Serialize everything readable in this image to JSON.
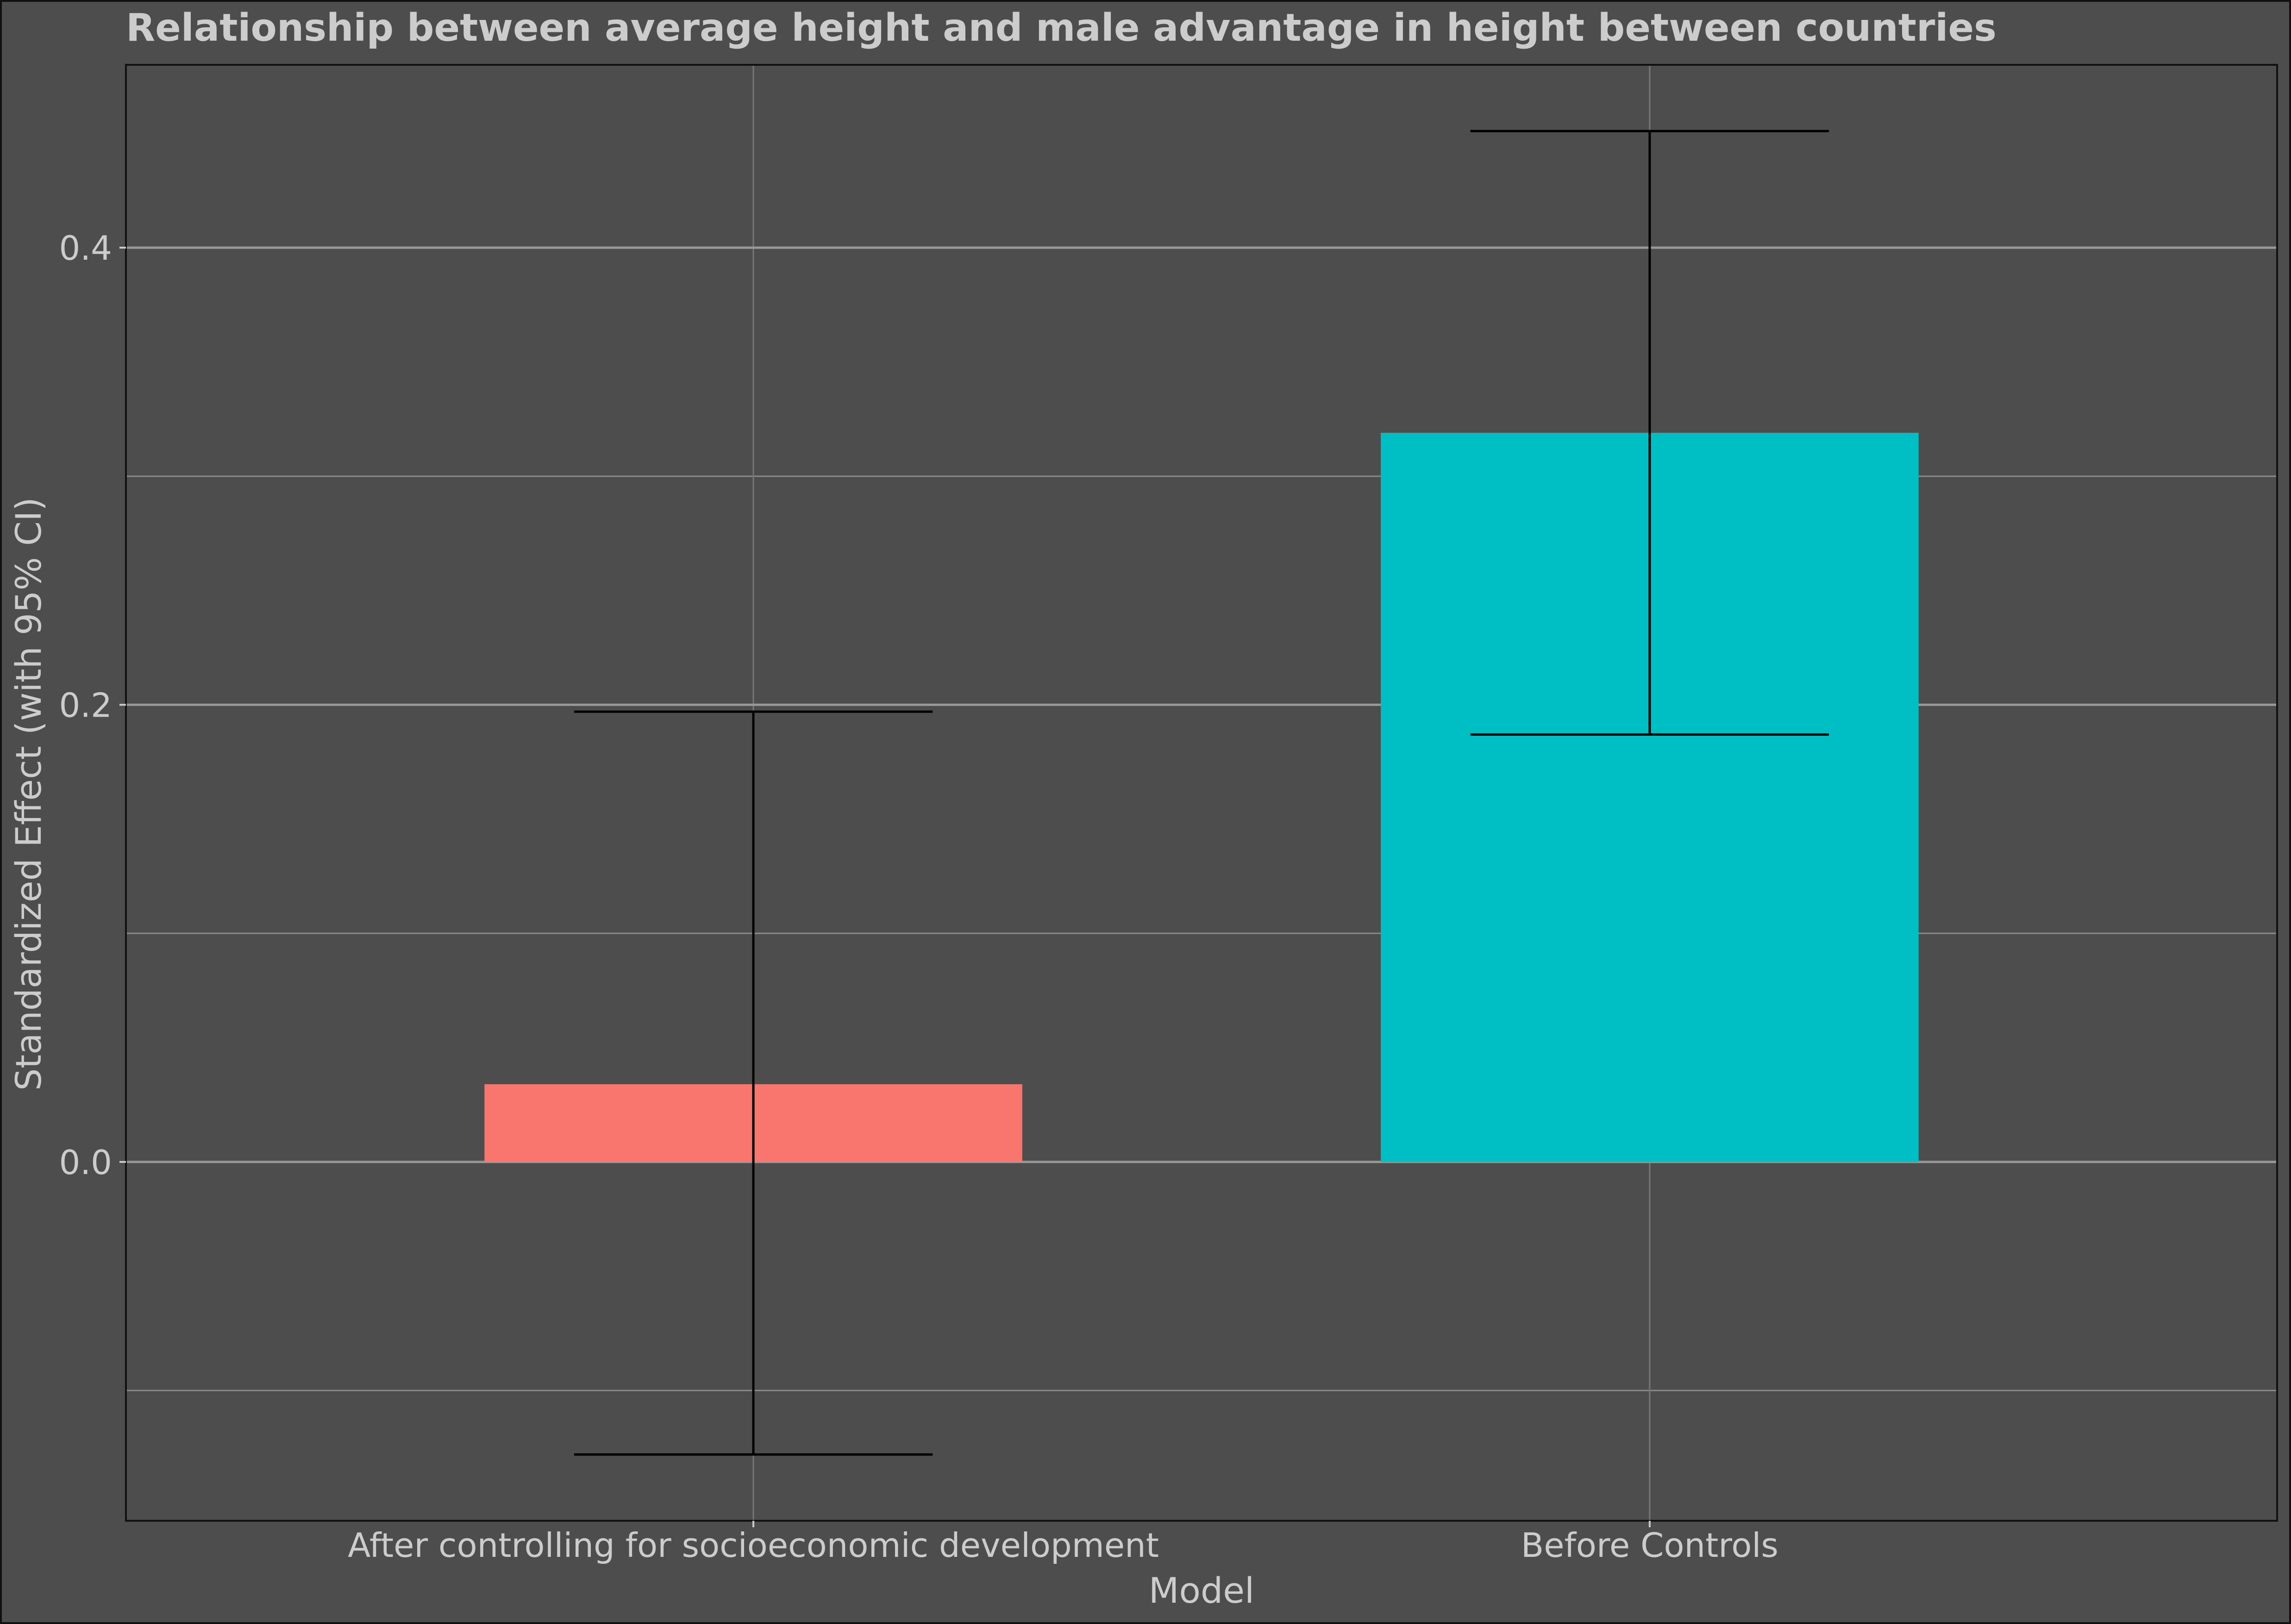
{
  "chart_data": {
    "type": "bar",
    "title": "Relationship between average height and male advantage in height between countries",
    "xlabel": "Model",
    "ylabel": "Standardized Effect (with 95% CI)",
    "categories": [
      "After controlling for socioeconomic development",
      "Before Controls"
    ],
    "values": [
      0.034,
      0.319
    ],
    "ci_low": [
      -0.128,
      0.187
    ],
    "ci_high": [
      0.197,
      0.451
    ],
    "colors": [
      "#f8766d",
      "#00bfc4"
    ],
    "ylim": [
      -0.157,
      0.48
    ],
    "y_ticks": [
      0.0,
      0.2,
      0.4
    ],
    "y_tick_labels": [
      "0.0",
      "0.2",
      "0.4"
    ],
    "grid": true,
    "legend": "none",
    "background": "#4d4d4d",
    "gridline_color": "#999999",
    "errorbar_color": "#000000",
    "text_color": "#cccccc"
  }
}
